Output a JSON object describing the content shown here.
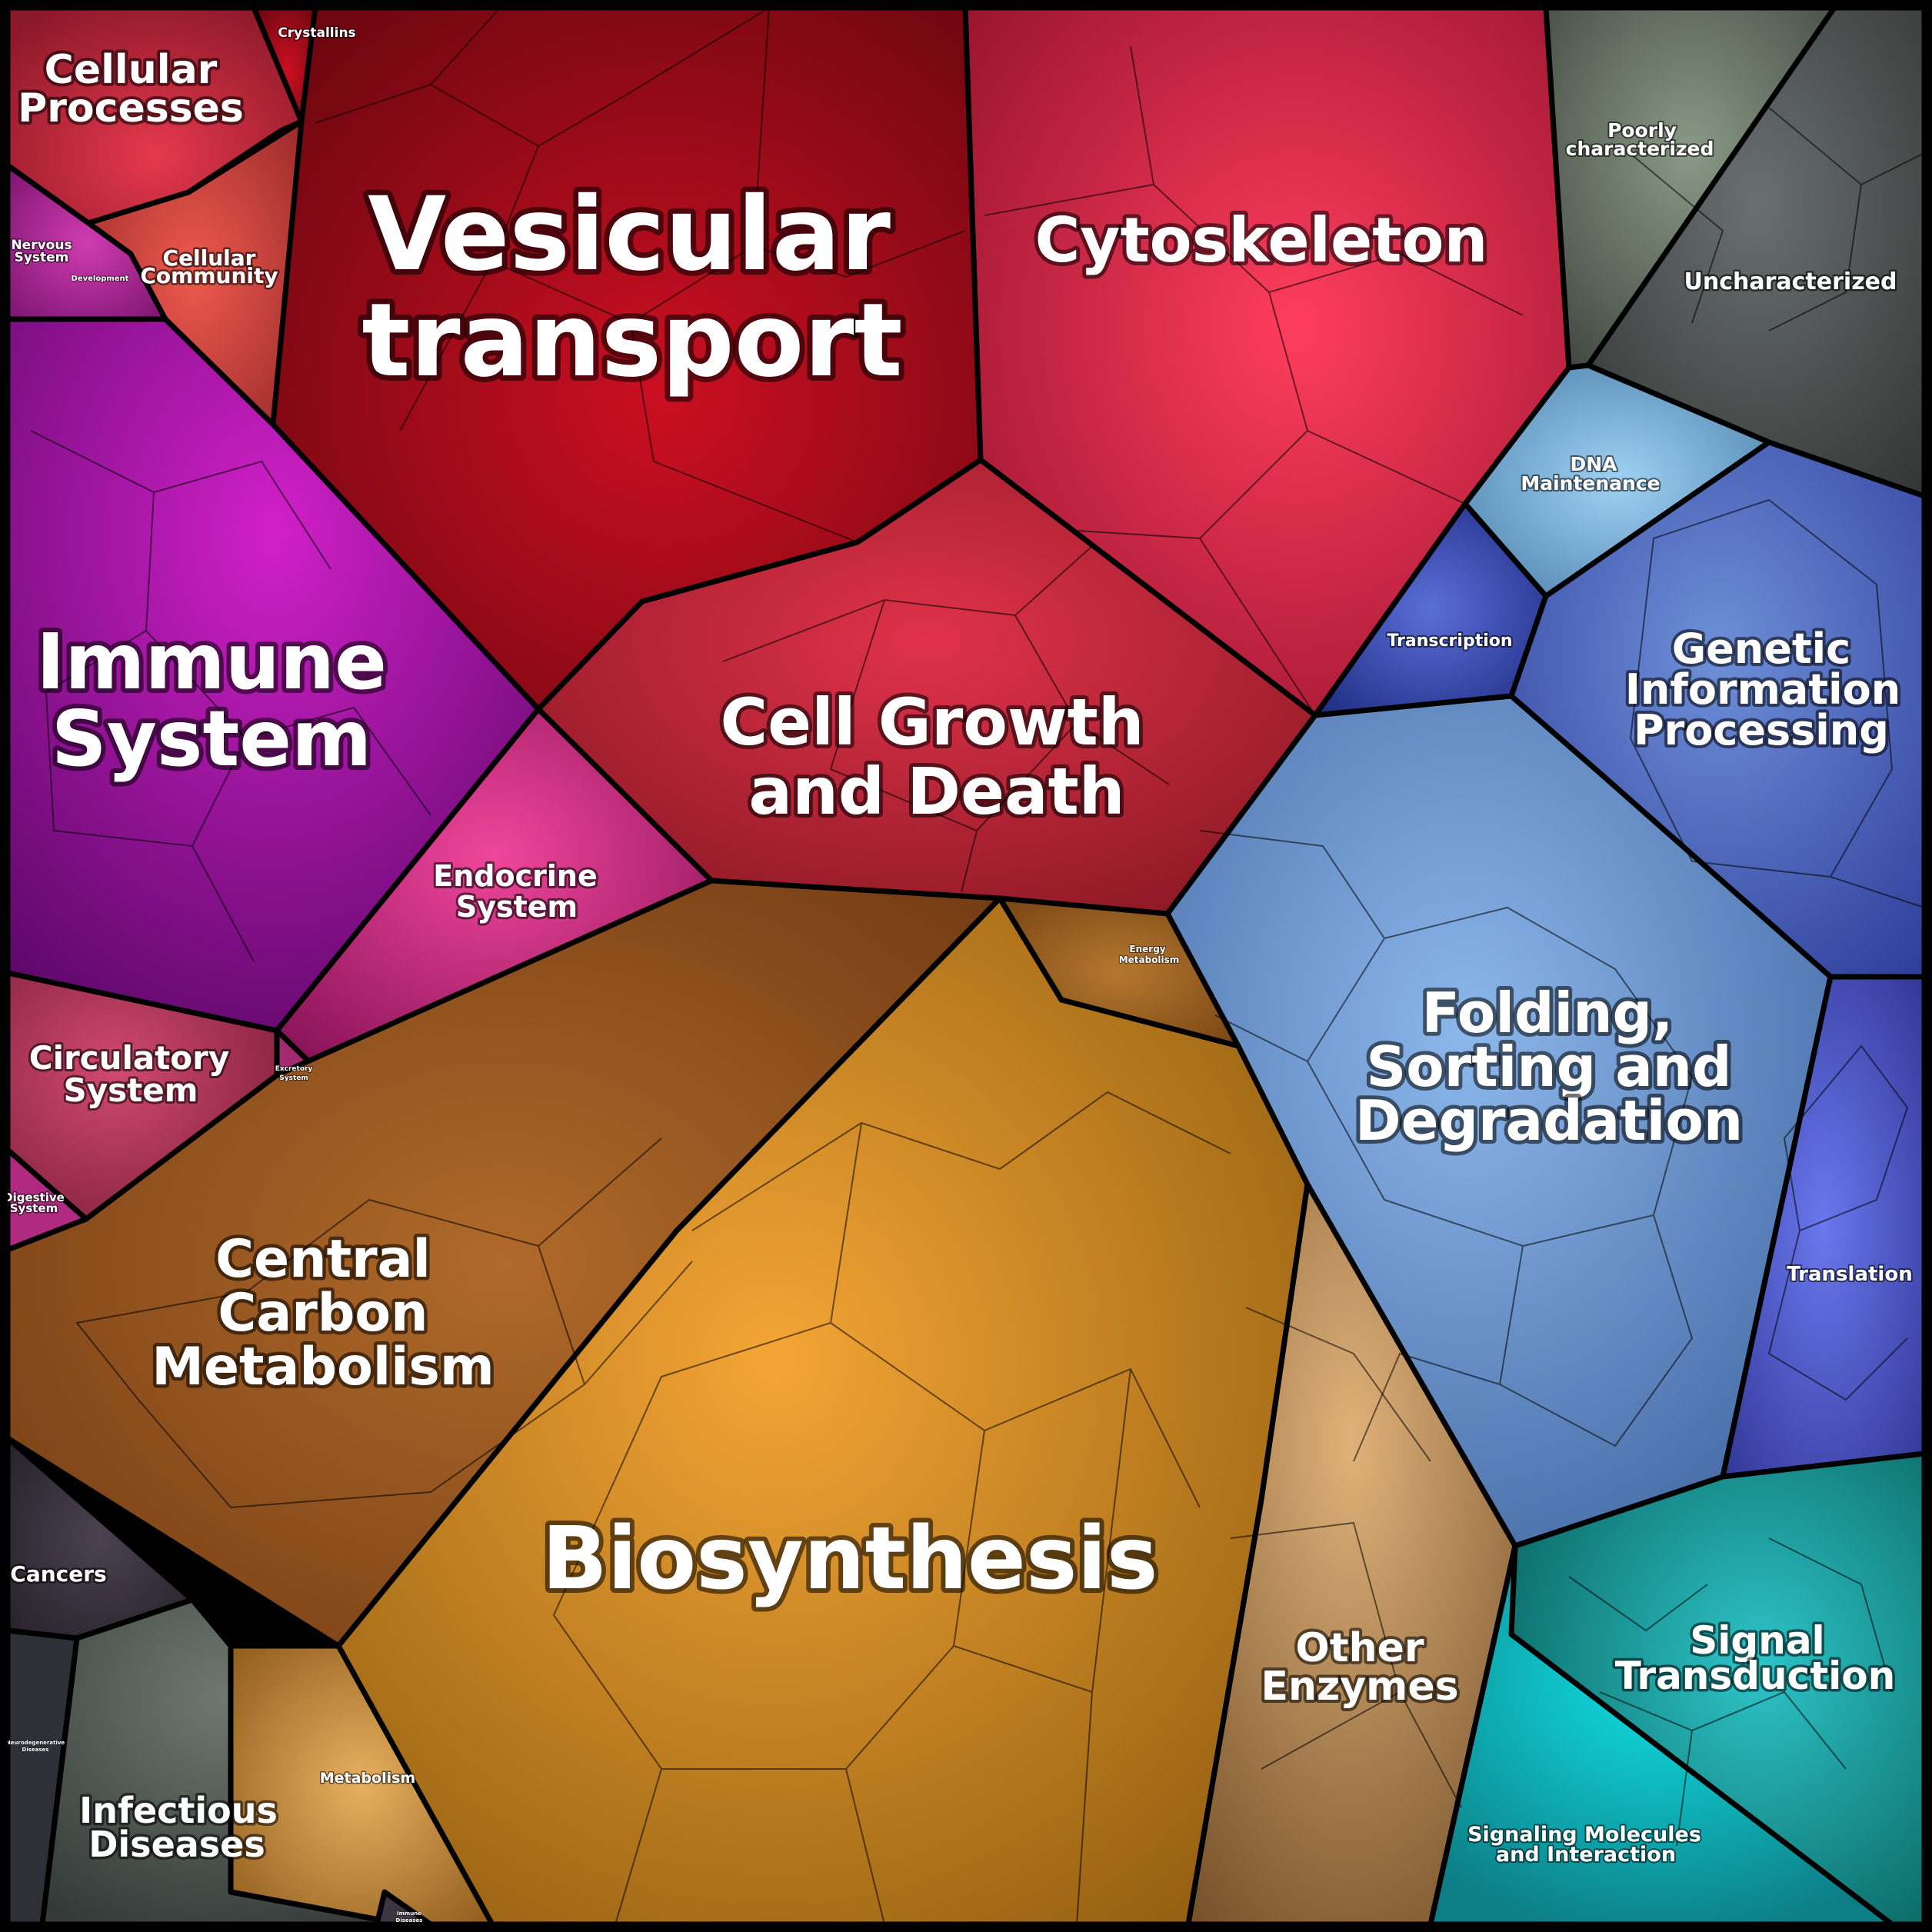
{
  "diagram": {
    "type": "voronoi-treemap",
    "regions": [
      {
        "id": "vesicular",
        "label_lines": [
          "Vesicular",
          "transport"
        ],
        "color": "#a8101d"
      },
      {
        "id": "cytoskeleton",
        "label_lines": [
          "Cytoskeleton"
        ],
        "color": "#c21e3c"
      },
      {
        "id": "cellgrowth",
        "label_lines": [
          "Cell Growth",
          "and Death"
        ],
        "color": "#b5212e"
      },
      {
        "id": "cellular-processes",
        "label_lines": [
          "Cellular",
          "Processes"
        ],
        "color": "#c22a3a"
      },
      {
        "id": "crystallins",
        "label_lines": [
          "Crystallins"
        ],
        "color": "#d02a35"
      },
      {
        "id": "cellular-community",
        "label_lines": [
          "Cellular",
          "Community"
        ],
        "color": "#d2463f"
      },
      {
        "id": "nervous",
        "label_lines": [
          "Nervous",
          "System"
        ],
        "color": "#b0208f"
      },
      {
        "id": "development",
        "label_lines": [
          "Development"
        ],
        "color": "#7a1080"
      },
      {
        "id": "immune",
        "label_lines": [
          "Immune",
          "System"
        ],
        "color": "#9a1a9a"
      },
      {
        "id": "endocrine",
        "label_lines": [
          "Endocrine",
          "System"
        ],
        "color": "#c2287a"
      },
      {
        "id": "circulatory",
        "label_lines": [
          "Circulatory",
          "System"
        ],
        "color": "#a8304e"
      },
      {
        "id": "excretory",
        "label_lines": [
          "Excretory",
          "System"
        ],
        "color": "#a32870"
      },
      {
        "id": "digestive",
        "label_lines": [
          "Digestive",
          "System"
        ],
        "color": "#b02a82"
      },
      {
        "id": "poorly",
        "label_lines": [
          "Poorly",
          "characterized"
        ],
        "color": "#5b6d5a"
      },
      {
        "id": "uncharacterized",
        "label_lines": [
          "Uncharacterized"
        ],
        "color": "#4f5552"
      },
      {
        "id": "dna",
        "label_lines": [
          "DNA",
          "Maintenance"
        ],
        "color": "#6fa4cc"
      },
      {
        "id": "transcription",
        "label_lines": [
          "Transcription"
        ],
        "color": "#3848a8"
      },
      {
        "id": "genetic",
        "label_lines": [
          "Genetic",
          "Information",
          "Processing"
        ],
        "color": "#3e62b3"
      },
      {
        "id": "folding",
        "label_lines": [
          "Folding,",
          "Sorting and",
          "Degradation"
        ],
        "color": "#4f7fb8"
      },
      {
        "id": "translation",
        "label_lines": [
          "Translation"
        ],
        "color": "#4350b5"
      },
      {
        "id": "energy",
        "label_lines": [
          "Energy",
          "Metabolism"
        ],
        "color": "#b07a2c"
      },
      {
        "id": "central-carbon",
        "label_lines": [
          "Central",
          "Carbon",
          "Metabolism"
        ],
        "color": "#9a5318"
      },
      {
        "id": "biosynthesis",
        "label_lines": [
          "Biosynthesis"
        ],
        "color": "#c98a1e"
      },
      {
        "id": "other-enzymes",
        "label_lines": [
          "Other",
          "Enzymes"
        ],
        "color": "#a67a4a"
      },
      {
        "id": "metabolism",
        "label_lines": [
          "Metabolism"
        ],
        "color": "#b78436"
      },
      {
        "id": "cancers",
        "label_lines": [
          "Cancers"
        ],
        "color": "#3a2f3e"
      },
      {
        "id": "neurodegenerative",
        "label_lines": [
          "Neurodegenerative",
          "Diseases"
        ],
        "color": "#363640"
      },
      {
        "id": "infectious",
        "label_lines": [
          "Infectious",
          "Diseases"
        ],
        "color": "#4a5350"
      },
      {
        "id": "immune-diseases",
        "label_lines": [
          "Immune",
          "Diseases"
        ],
        "color": "#3a3540"
      },
      {
        "id": "signal",
        "label_lines": [
          "Signal",
          "Transduction"
        ],
        "color": "#12908e"
      },
      {
        "id": "signaling-molecules",
        "label_lines": [
          "Signaling Molecules",
          "and Interaction"
        ],
        "color": "#17a6a9"
      }
    ]
  }
}
